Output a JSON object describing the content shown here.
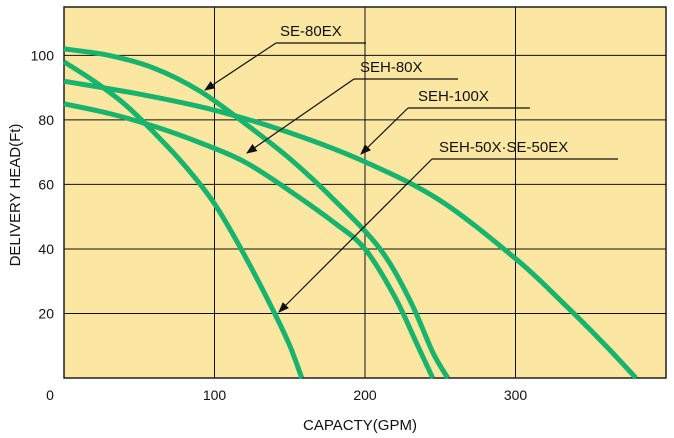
{
  "chart_data": {
    "type": "line",
    "title": "",
    "xlabel": "CAPACTY(GPM)",
    "ylabel": "DELIVERY HEAD(Ft)",
    "xlim": [
      0,
      400
    ],
    "ylim": [
      0,
      115
    ],
    "xticks": [
      0,
      100,
      200,
      300
    ],
    "yticks": [
      20,
      40,
      60,
      80,
      100
    ],
    "grid": true,
    "plot_background": "#fbe6a2",
    "line_color": "#18b36d",
    "series": [
      {
        "name": "SE-80EX",
        "points": [
          [
            0,
            102
          ],
          [
            30,
            100
          ],
          [
            60,
            96
          ],
          [
            90,
            89
          ],
          [
            120,
            79
          ],
          [
            150,
            68
          ],
          [
            180,
            55
          ],
          [
            210,
            40
          ],
          [
            230,
            24
          ],
          [
            245,
            8
          ],
          [
            255,
            0
          ]
        ]
      },
      {
        "name": "SEH-80X",
        "points": [
          [
            0,
            85
          ],
          [
            30,
            82
          ],
          [
            60,
            78
          ],
          [
            90,
            73
          ],
          [
            120,
            67
          ],
          [
            150,
            58
          ],
          [
            180,
            48
          ],
          [
            200,
            40
          ],
          [
            220,
            25
          ],
          [
            235,
            10
          ],
          [
            245,
            0
          ]
        ]
      },
      {
        "name": "SEH-100X",
        "points": [
          [
            0,
            92
          ],
          [
            50,
            88
          ],
          [
            100,
            83
          ],
          [
            150,
            76
          ],
          [
            200,
            67
          ],
          [
            250,
            55
          ],
          [
            300,
            37
          ],
          [
            330,
            24
          ],
          [
            360,
            10
          ],
          [
            380,
            0
          ]
        ]
      },
      {
        "name": "SEH-50X·SE-50EX",
        "points": [
          [
            0,
            98
          ],
          [
            20,
            92
          ],
          [
            40,
            85
          ],
          [
            60,
            76
          ],
          [
            80,
            66
          ],
          [
            100,
            54
          ],
          [
            120,
            38
          ],
          [
            140,
            20
          ],
          [
            150,
            10
          ],
          [
            158,
            0
          ]
        ]
      }
    ]
  }
}
